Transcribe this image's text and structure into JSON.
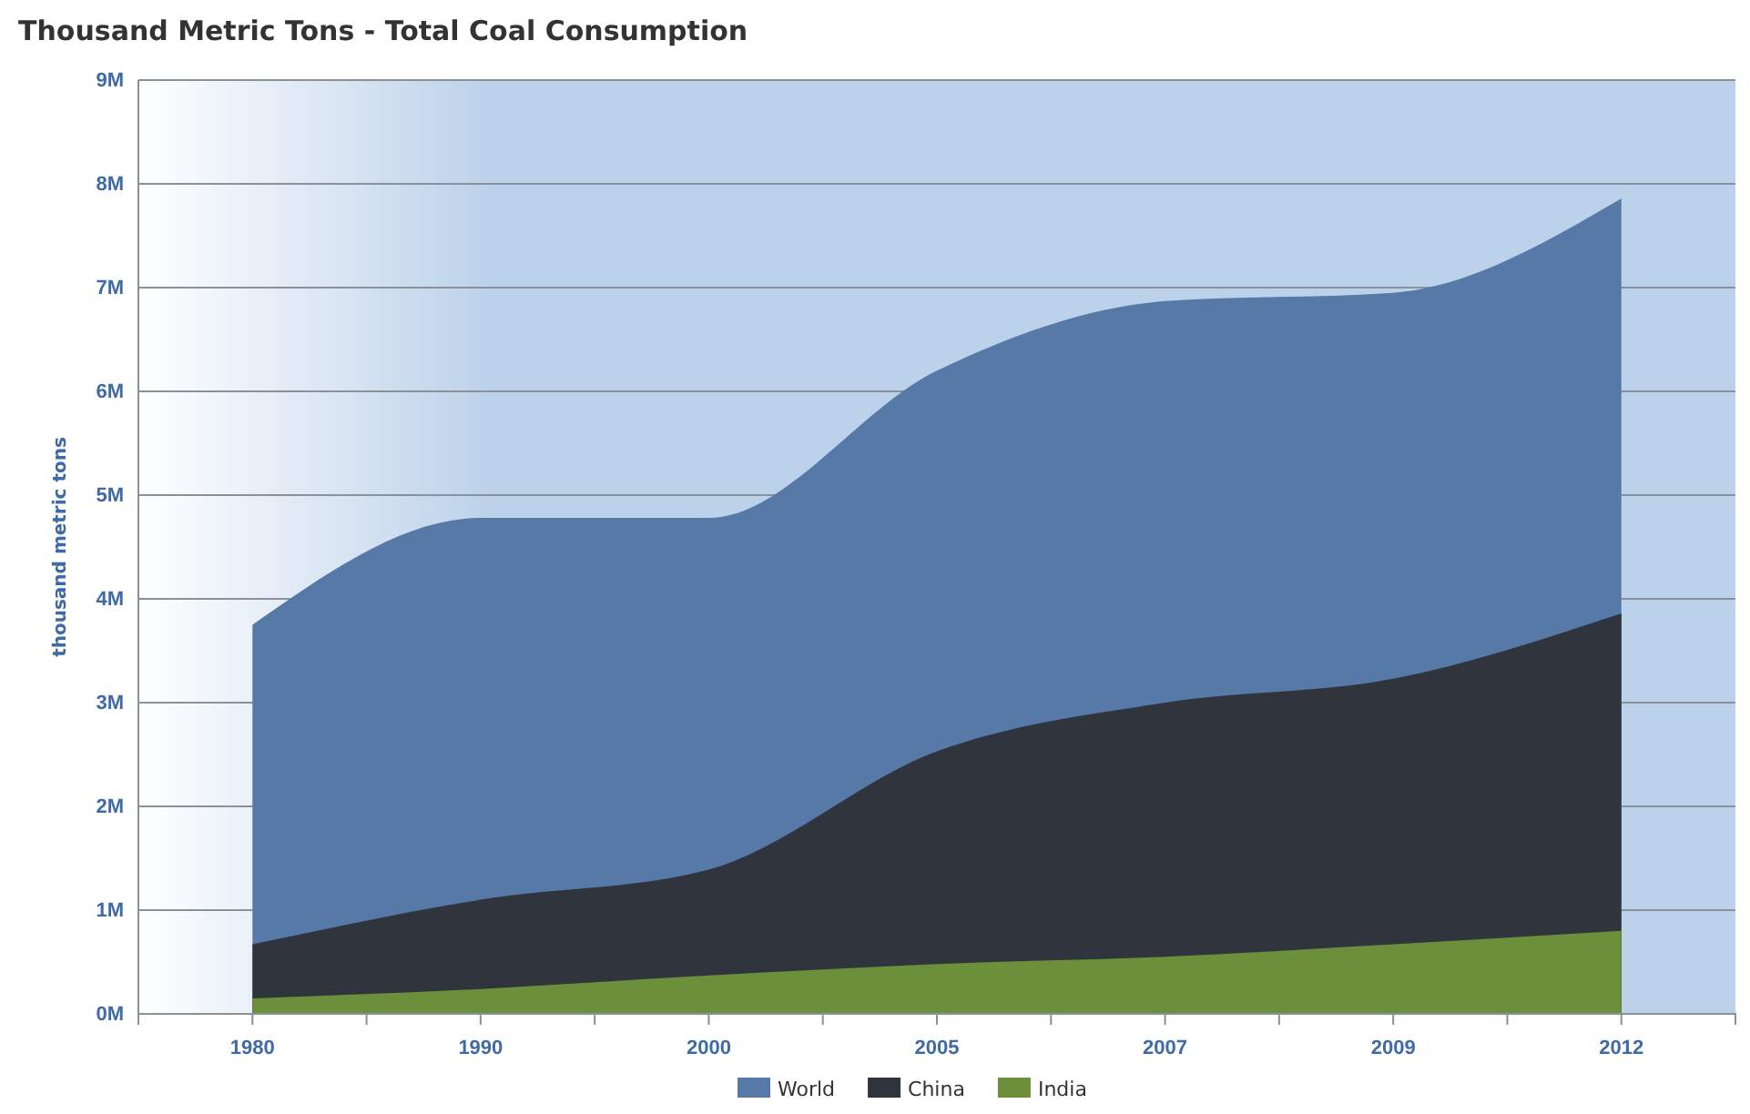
{
  "chart_data": {
    "type": "area",
    "title": "Thousand Metric Tons - Total Coal Consumption",
    "ylabel": "thousand metric tons",
    "categories": [
      "1980",
      "1990",
      "2000",
      "2005",
      "2007",
      "2009",
      "2012"
    ],
    "series": [
      {
        "name": "World",
        "color": "#5679a8",
        "values": [
          3.75,
          4.78,
          4.78,
          6.2,
          6.87,
          6.95,
          7.86
        ]
      },
      {
        "name": "China",
        "color": "#30343c",
        "values": [
          0.67,
          1.1,
          1.39,
          2.53,
          3.0,
          3.23,
          3.86
        ]
      },
      {
        "name": "India",
        "color": "#6b8f3b",
        "values": [
          0.15,
          0.24,
          0.37,
          0.48,
          0.55,
          0.67,
          0.8
        ]
      }
    ],
    "ylim": [
      0,
      9
    ],
    "yticks": [
      {
        "value": 0,
        "label": "0M"
      },
      {
        "value": 1,
        "label": "1M"
      },
      {
        "value": 2,
        "label": "2M"
      },
      {
        "value": 3,
        "label": "3M"
      },
      {
        "value": 4,
        "label": "4M"
      },
      {
        "value": 5,
        "label": "5M"
      },
      {
        "value": 6,
        "label": "6M"
      },
      {
        "value": 7,
        "label": "7M"
      },
      {
        "value": 8,
        "label": "8M"
      },
      {
        "value": 9,
        "label": "9M"
      }
    ],
    "grid": "y",
    "legend": "bottom"
  }
}
